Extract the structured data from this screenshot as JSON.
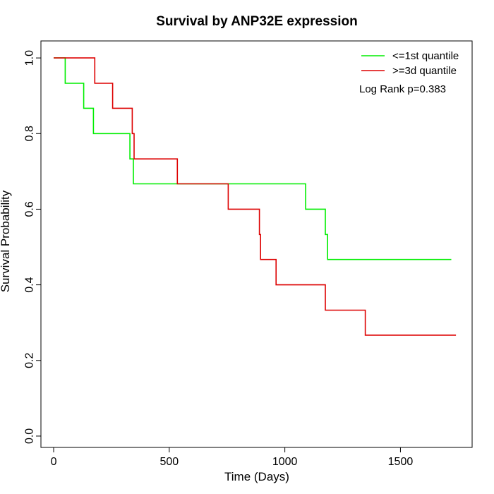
{
  "chart_data": {
    "type": "line",
    "title": "Survival by ANP32E expression",
    "xlabel": "Time (Days)",
    "ylabel": "Survival Probability",
    "xlim": [
      -55,
      1810
    ],
    "ylim": [
      -0.03,
      1.045
    ],
    "x_ticks": [
      0,
      500,
      1000,
      1500
    ],
    "x_tick_labels": [
      "0",
      "500",
      "1000",
      "1500"
    ],
    "y_ticks": [
      0.0,
      0.2,
      0.4,
      0.6,
      0.8,
      1.0
    ],
    "y_tick_labels": [
      "0.0",
      "0.2",
      "0.4",
      "0.6",
      "0.8",
      "1.0"
    ],
    "grid": false,
    "legend_position": "top-right",
    "annotation": "Log Rank p=0.383",
    "series": [
      {
        "name": "<=1st quantile",
        "color": "#00ee00",
        "step": true,
        "points": [
          [
            0,
            1.0
          ],
          [
            50,
            0.933
          ],
          [
            130,
            0.867
          ],
          [
            172,
            0.8
          ],
          [
            330,
            0.733
          ],
          [
            345,
            0.667
          ],
          [
            1090,
            0.6
          ],
          [
            1175,
            0.533
          ],
          [
            1185,
            0.467
          ],
          [
            1720,
            0.467
          ]
        ]
      },
      {
        "name": ">=3d quantile",
        "color": "#dd0000",
        "step": true,
        "points": [
          [
            0,
            1.0
          ],
          [
            178,
            0.933
          ],
          [
            255,
            0.867
          ],
          [
            340,
            0.8
          ],
          [
            348,
            0.733
          ],
          [
            535,
            0.667
          ],
          [
            755,
            0.6
          ],
          [
            890,
            0.533
          ],
          [
            895,
            0.467
          ],
          [
            962,
            0.4
          ],
          [
            1175,
            0.333
          ],
          [
            1348,
            0.267
          ],
          [
            1740,
            0.267
          ]
        ]
      }
    ]
  }
}
